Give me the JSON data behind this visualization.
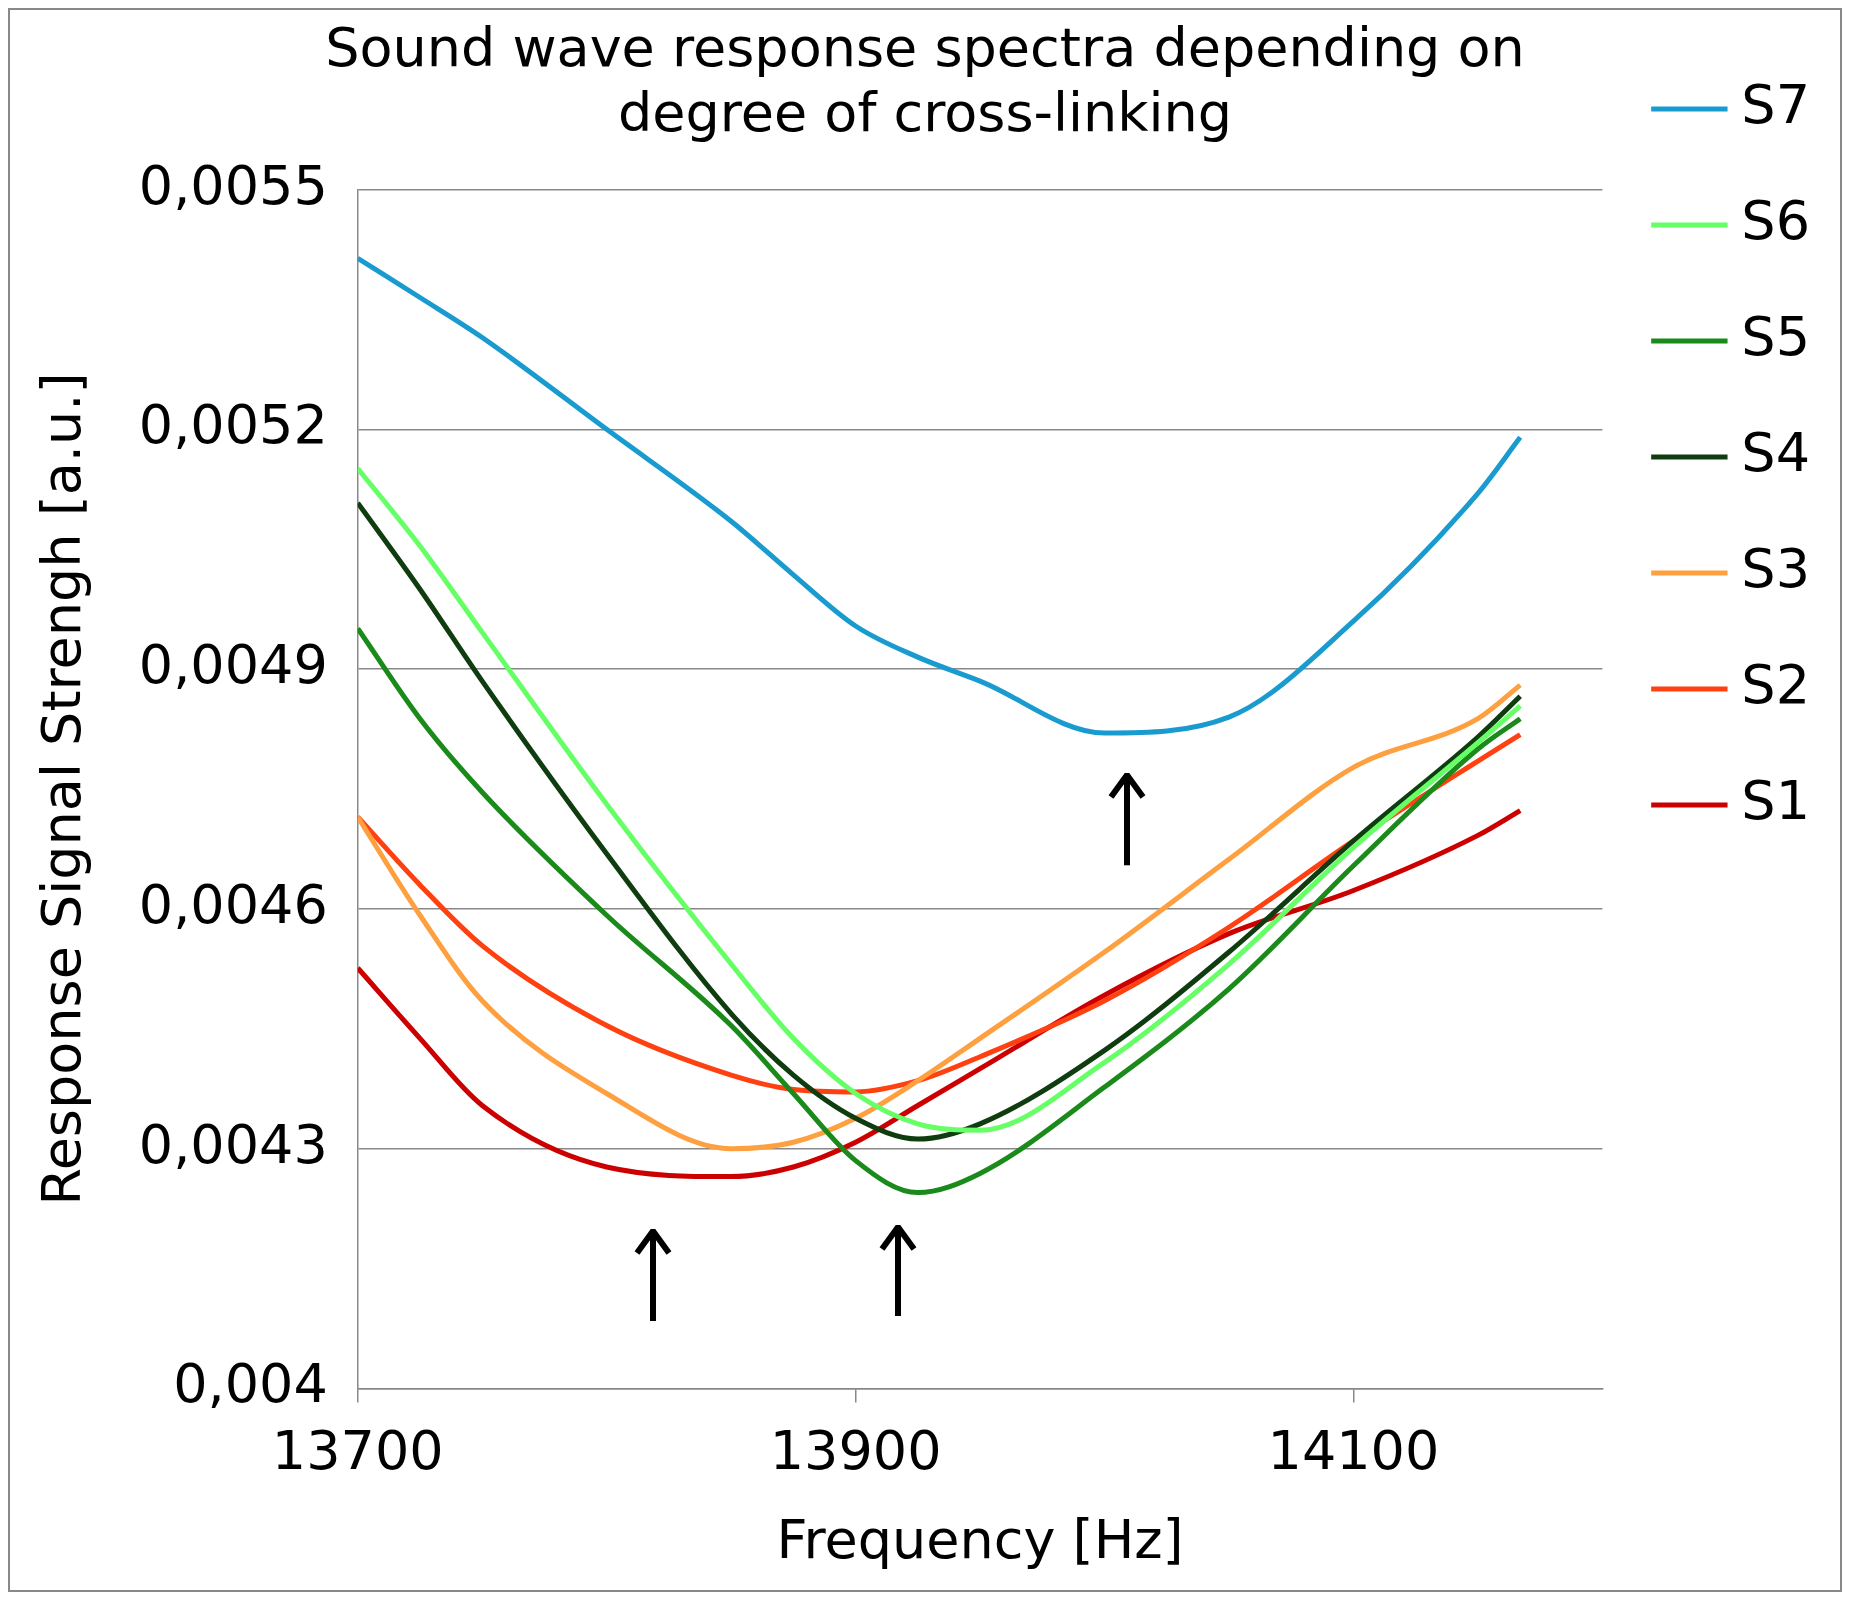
{
  "chart_data": {
    "type": "line",
    "title": "Sound wave response spectra depending on degree of cross-linking",
    "xlabel": "Frequency [Hz]",
    "ylabel": "Response Signal Strengh [a.u.]",
    "x": [
      13700,
      13725,
      13750,
      13800,
      13850,
      13875,
      13900,
      13925,
      13950,
      14000,
      14050,
      14100,
      14150,
      14167
    ],
    "series": [
      {
        "name": "S7",
        "color": "#1a9bd0",
        "values": [
          0.005414,
          0.005365,
          0.005315,
          0.0052,
          0.005085,
          0.005018,
          0.004954,
          0.004915,
          0.004885,
          0.00482,
          0.00484,
          0.00496,
          0.00512,
          0.00519
        ]
      },
      {
        "name": "S6",
        "color": "#66ff66",
        "values": [
          0.005151,
          0.005054,
          0.004946,
          0.004731,
          0.004531,
          0.004438,
          0.004369,
          0.004331,
          0.004323,
          0.004408,
          0.004531,
          0.004677,
          0.004808,
          0.004854
        ]
      },
      {
        "name": "S5",
        "color": "#1a8a1a",
        "values": [
          0.004951,
          0.004838,
          0.004746,
          0.004592,
          0.004454,
          0.004369,
          0.004285,
          0.004245,
          0.004269,
          0.004377,
          0.0045,
          0.004654,
          0.0048,
          0.004838
        ]
      },
      {
        "name": "S4",
        "color": "#0f3d0f",
        "values": [
          0.005108,
          0.005,
          0.004885,
          0.004669,
          0.004469,
          0.004392,
          0.004338,
          0.004312,
          0.004331,
          0.004423,
          0.004546,
          0.004685,
          0.004815,
          0.004866
        ]
      },
      {
        "name": "S3",
        "color": "#ffa040",
        "values": [
          0.004715,
          0.004592,
          0.004485,
          0.004369,
          0.0043,
          0.004308,
          0.004338,
          0.004385,
          0.004438,
          0.004546,
          0.004662,
          0.004777,
          0.004838,
          0.00488
        ]
      },
      {
        "name": "S2",
        "color": "#ff4010",
        "values": [
          0.004715,
          0.00463,
          0.004554,
          0.004454,
          0.004392,
          0.004374,
          0.004371,
          0.004385,
          0.004415,
          0.004485,
          0.004577,
          0.004685,
          0.004785,
          0.004818
        ]
      },
      {
        "name": "S1",
        "color": "#cc0000",
        "values": [
          0.004526,
          0.004438,
          0.004354,
          0.004277,
          0.004265,
          0.004277,
          0.004308,
          0.004354,
          0.0044,
          0.004492,
          0.004569,
          0.004623,
          0.004692,
          0.004723
        ]
      }
    ],
    "xlim": [
      13700,
      14200
    ],
    "xticks": [
      13700,
      13900,
      14100
    ],
    "ylim": [
      0.004,
      0.0055
    ],
    "yticks": [
      {
        "value": 0.004,
        "label": "0,004"
      },
      {
        "value": 0.0043,
        "label": "0,0043"
      },
      {
        "value": 0.0046,
        "label": "0,0046"
      },
      {
        "value": 0.0049,
        "label": "0,0049"
      },
      {
        "value": 0.0052,
        "label": "0,0052"
      },
      {
        "value": 0.0055,
        "label": "0,0055"
      }
    ],
    "grid": "y",
    "legend": "right",
    "marker": "none",
    "line_style": "solid"
  }
}
